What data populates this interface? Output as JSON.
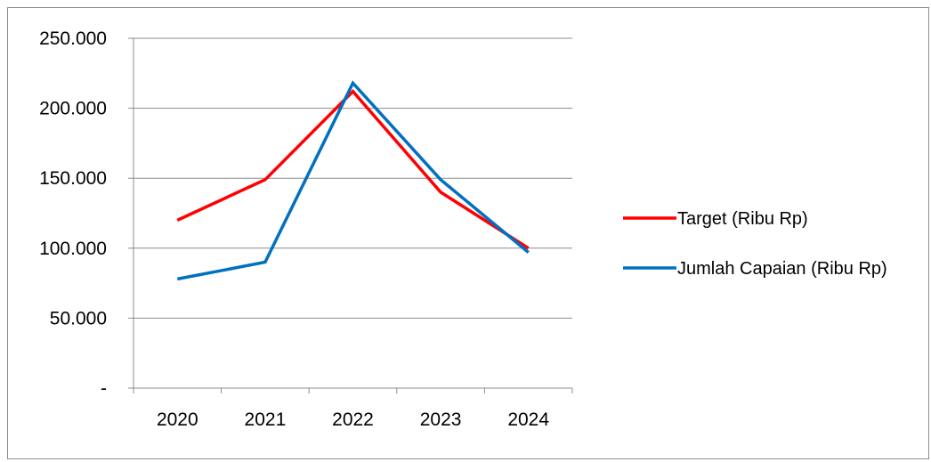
{
  "chart_data": {
    "type": "line",
    "title": "",
    "xlabel": "",
    "ylabel": "",
    "categories": [
      "2020",
      "2021",
      "2022",
      "2023",
      "2024"
    ],
    "y_ticks": [
      0,
      50000,
      100000,
      150000,
      200000,
      250000
    ],
    "y_tick_labels": [
      "-",
      "50.000",
      "100.000",
      "150.000",
      "200.000",
      "250.000"
    ],
    "ylim": [
      0,
      250000
    ],
    "grid": true,
    "legend_position": "right",
    "series": [
      {
        "name": "Target (Ribu Rp)",
        "color": "#ff0000",
        "values": [
          120000,
          149000,
          212000,
          140000,
          100000
        ]
      },
      {
        "name": "Jumlah Capaian (Ribu Rp)",
        "color": "#0070c0",
        "values": [
          78000,
          90000,
          218000,
          149000,
          97000
        ]
      }
    ]
  }
}
